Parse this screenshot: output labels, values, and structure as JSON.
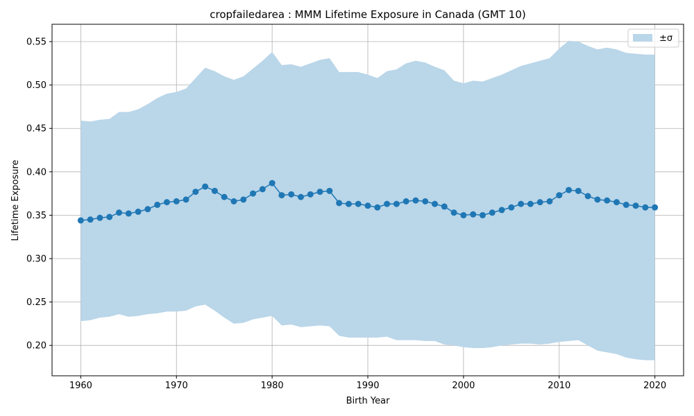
{
  "chart_data": {
    "type": "line",
    "title": "cropfailedarea : MMM Lifetime Exposure in Canada (GMT 10)",
    "xlabel": "Birth Year",
    "ylabel": "Lifetime Exposure",
    "xlim": [
      1957,
      2023
    ],
    "ylim": [
      0.165,
      0.57
    ],
    "xticks": [
      1960,
      1970,
      1980,
      1990,
      2000,
      2010,
      2020
    ],
    "yticks": [
      0.2,
      0.25,
      0.3,
      0.35,
      0.4,
      0.45,
      0.5,
      0.55
    ],
    "ytick_labels": [
      "0.20",
      "0.25",
      "0.30",
      "0.35",
      "0.40",
      "0.45",
      "0.50",
      "0.55"
    ],
    "grid": true,
    "legend": {
      "position": "upper-right",
      "entries": [
        "±σ"
      ]
    },
    "colors": {
      "line": "#1f77b4",
      "band": "#bad6e9",
      "grid": "#b0b0b0"
    },
    "x": [
      1960,
      1961,
      1962,
      1963,
      1964,
      1965,
      1966,
      1967,
      1968,
      1969,
      1970,
      1971,
      1972,
      1973,
      1974,
      1975,
      1976,
      1977,
      1978,
      1979,
      1980,
      1981,
      1982,
      1983,
      1984,
      1985,
      1986,
      1987,
      1988,
      1989,
      1990,
      1991,
      1992,
      1993,
      1994,
      1995,
      1996,
      1997,
      1998,
      1999,
      2000,
      2001,
      2002,
      2003,
      2004,
      2005,
      2006,
      2007,
      2008,
      2009,
      2010,
      2011,
      2012,
      2013,
      2014,
      2015,
      2016,
      2017,
      2018,
      2019,
      2020
    ],
    "series": [
      {
        "values": [
          0.344,
          0.345,
          0.347,
          0.348,
          0.353,
          0.352,
          0.354,
          0.357,
          0.362,
          0.365,
          0.366,
          0.368,
          0.377,
          0.383,
          0.378,
          0.371,
          0.366,
          0.368,
          0.375,
          0.38,
          0.387,
          0.373,
          0.374,
          0.371,
          0.374,
          0.377,
          0.378,
          0.364,
          0.363,
          0.363,
          0.361,
          0.359,
          0.363,
          0.363,
          0.366,
          0.367,
          0.366,
          0.363,
          0.36,
          0.353,
          0.35,
          0.351,
          0.35,
          0.353,
          0.356,
          0.359,
          0.363,
          0.363,
          0.365,
          0.366,
          0.373,
          0.379,
          0.378,
          0.372,
          0.368,
          0.367,
          0.365,
          0.362,
          0.361,
          0.359,
          0.359
        ],
        "upper": [
          0.459,
          0.458,
          0.46,
          0.461,
          0.469,
          0.469,
          0.472,
          0.478,
          0.485,
          0.49,
          0.492,
          0.496,
          0.508,
          0.52,
          0.516,
          0.51,
          0.506,
          0.51,
          0.519,
          0.528,
          0.538,
          0.523,
          0.524,
          0.521,
          0.525,
          0.529,
          0.531,
          0.515,
          0.515,
          0.515,
          0.512,
          0.508,
          0.516,
          0.518,
          0.525,
          0.528,
          0.526,
          0.521,
          0.517,
          0.505,
          0.502,
          0.505,
          0.504,
          0.508,
          0.512,
          0.517,
          0.522,
          0.525,
          0.528,
          0.531,
          0.542,
          0.551,
          0.55,
          0.545,
          0.541,
          0.543,
          0.541,
          0.537,
          0.536,
          0.535,
          0.535
        ],
        "lower": [
          0.228,
          0.229,
          0.232,
          0.233,
          0.236,
          0.233,
          0.234,
          0.236,
          0.237,
          0.239,
          0.239,
          0.24,
          0.245,
          0.247,
          0.24,
          0.232,
          0.225,
          0.226,
          0.23,
          0.232,
          0.234,
          0.223,
          0.224,
          0.221,
          0.222,
          0.223,
          0.222,
          0.211,
          0.209,
          0.209,
          0.209,
          0.209,
          0.21,
          0.206,
          0.206,
          0.206,
          0.205,
          0.205,
          0.201,
          0.2,
          0.198,
          0.197,
          0.197,
          0.198,
          0.2,
          0.201,
          0.202,
          0.202,
          0.201,
          0.202,
          0.204,
          0.205,
          0.206,
          0.2,
          0.194,
          0.192,
          0.19,
          0.186,
          0.184,
          0.183,
          0.183
        ]
      }
    ]
  }
}
